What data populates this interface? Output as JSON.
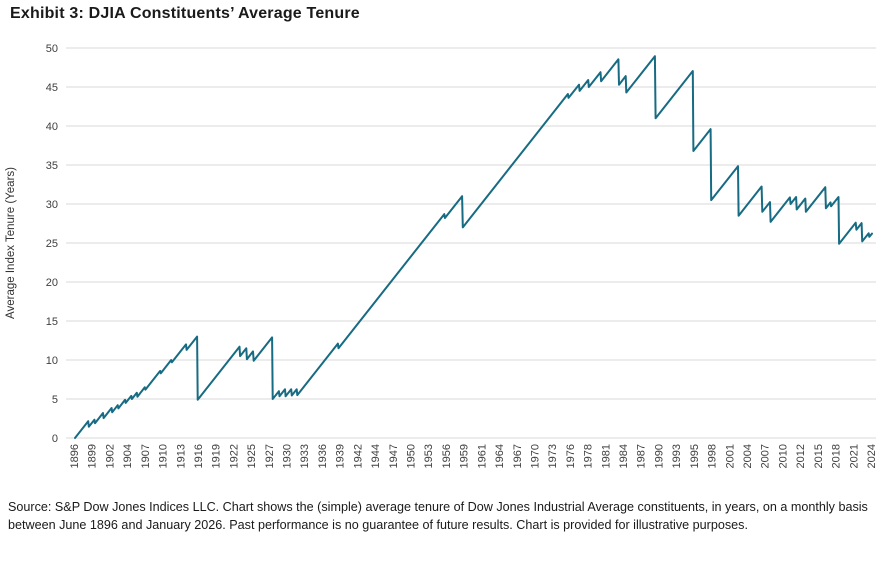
{
  "title": "Exhibit 3: DJIA Constituents’ Average Tenure",
  "footer": "Source: S&P Dow Jones Indices LLC. Chart shows the (simple) average tenure of Dow Jones Industrial Average constituents, in years, on a monthly basis between June 1896 and January 2026. Past performance is no guarantee of future results. Chart is provided for illustrative purposes.",
  "chart_data": {
    "type": "line",
    "title": "Exhibit 3: DJIA Constituents’ Average Tenure",
    "series_name": "DJIA constituents average tenure (years, monthly)",
    "xlabel": "",
    "ylabel": "Average Index Tenure (Years)",
    "x_range": [
      1896.45,
      2026.04
    ],
    "ylim": [
      0,
      50
    ],
    "grid": true,
    "legend": false,
    "line_color": "#176b82",
    "grid_color": "#d9d9d9",
    "tick_text_color": "#404040",
    "y_ticks": [
      0,
      5,
      10,
      15,
      20,
      25,
      30,
      35,
      40,
      45,
      50
    ],
    "x_tick_labels": [
      "1896",
      "1899",
      "1902",
      "1904",
      "1907",
      "1910",
      "1913",
      "1916",
      "1919",
      "1922",
      "1925",
      "1927",
      "1930",
      "1933",
      "1936",
      "1939",
      "1942",
      "1944",
      "1947",
      "1950",
      "1953",
      "1956",
      "1959",
      "1961",
      "1964",
      "1967",
      "1970",
      "1973",
      "1976",
      "1978",
      "1981",
      "1984",
      "1987",
      "1990",
      "1993",
      "1995",
      "1998",
      "2001",
      "2004",
      "2007",
      "2010",
      "2012",
      "2015",
      "2018",
      "2021",
      "2024"
    ],
    "keypoints": [
      [
        1896.45,
        0
      ],
      [
        1898.6,
        2.15
      ],
      [
        1898.7,
        1.45
      ],
      [
        1899.6,
        2.35
      ],
      [
        1899.7,
        1.9
      ],
      [
        1901.0,
        3.2
      ],
      [
        1901.1,
        2.55
      ],
      [
        1902.4,
        3.85
      ],
      [
        1902.5,
        3.3
      ],
      [
        1903.4,
        4.2
      ],
      [
        1903.5,
        3.8
      ],
      [
        1904.6,
        4.9
      ],
      [
        1904.7,
        4.5
      ],
      [
        1905.6,
        5.4
      ],
      [
        1905.7,
        5.0
      ],
      [
        1906.5,
        5.8
      ],
      [
        1906.6,
        5.3
      ],
      [
        1907.8,
        6.5
      ],
      [
        1907.9,
        6.2
      ],
      [
        1910.3,
        8.6
      ],
      [
        1910.4,
        8.3
      ],
      [
        1912.1,
        10.0
      ],
      [
        1912.2,
        9.7
      ],
      [
        1914.5,
        12.0
      ],
      [
        1914.6,
        11.3
      ],
      [
        1916.3,
        13.0
      ],
      [
        1916.4,
        4.9
      ],
      [
        1923.2,
        11.7
      ],
      [
        1923.3,
        10.5
      ],
      [
        1924.3,
        11.5
      ],
      [
        1924.4,
        10.1
      ],
      [
        1925.4,
        11.1
      ],
      [
        1925.5,
        9.9
      ],
      [
        1928.5,
        12.9
      ],
      [
        1928.6,
        5.0
      ],
      [
        1929.6,
        6.0
      ],
      [
        1929.7,
        5.35
      ],
      [
        1930.6,
        6.25
      ],
      [
        1930.7,
        5.35
      ],
      [
        1931.6,
        6.25
      ],
      [
        1931.7,
        5.45
      ],
      [
        1932.5,
        6.25
      ],
      [
        1932.6,
        5.5
      ],
      [
        1939.2,
        12.1
      ],
      [
        1939.3,
        11.5
      ],
      [
        1956.5,
        28.7
      ],
      [
        1956.6,
        28.2
      ],
      [
        1959.4,
        31.0
      ],
      [
        1959.5,
        27.0
      ],
      [
        1976.6,
        44.1
      ],
      [
        1976.7,
        43.6
      ],
      [
        1978.4,
        45.3
      ],
      [
        1978.5,
        44.5
      ],
      [
        1979.9,
        45.9
      ],
      [
        1980.0,
        45.0
      ],
      [
        1981.9,
        46.9
      ],
      [
        1982.0,
        45.75
      ],
      [
        1984.8,
        48.55
      ],
      [
        1984.9,
        45.3
      ],
      [
        1986.0,
        46.4
      ],
      [
        1986.1,
        44.3
      ],
      [
        1990.75,
        48.95
      ],
      [
        1990.85,
        41.0
      ],
      [
        1996.9,
        47.05
      ],
      [
        1997.0,
        36.8
      ],
      [
        1999.8,
        39.6
      ],
      [
        1999.9,
        30.5
      ],
      [
        2004.25,
        34.85
      ],
      [
        2004.35,
        28.5
      ],
      [
        2008.1,
        32.25
      ],
      [
        2008.2,
        29.0
      ],
      [
        2009.45,
        30.25
      ],
      [
        2009.55,
        27.7
      ],
      [
        2012.7,
        30.85
      ],
      [
        2012.8,
        30.0
      ],
      [
        2013.7,
        30.9
      ],
      [
        2013.8,
        29.3
      ],
      [
        2015.2,
        30.7
      ],
      [
        2015.3,
        29.0
      ],
      [
        2018.45,
        32.15
      ],
      [
        2018.55,
        29.45
      ],
      [
        2019.3,
        30.2
      ],
      [
        2019.4,
        29.7
      ],
      [
        2020.6,
        30.9
      ],
      [
        2020.7,
        24.9
      ],
      [
        2023.4,
        27.6
      ],
      [
        2023.5,
        26.7
      ],
      [
        2024.35,
        27.55
      ],
      [
        2024.45,
        25.2
      ],
      [
        2025.5,
        26.25
      ],
      [
        2025.6,
        25.8
      ],
      [
        2026.04,
        26.2
      ]
    ]
  }
}
